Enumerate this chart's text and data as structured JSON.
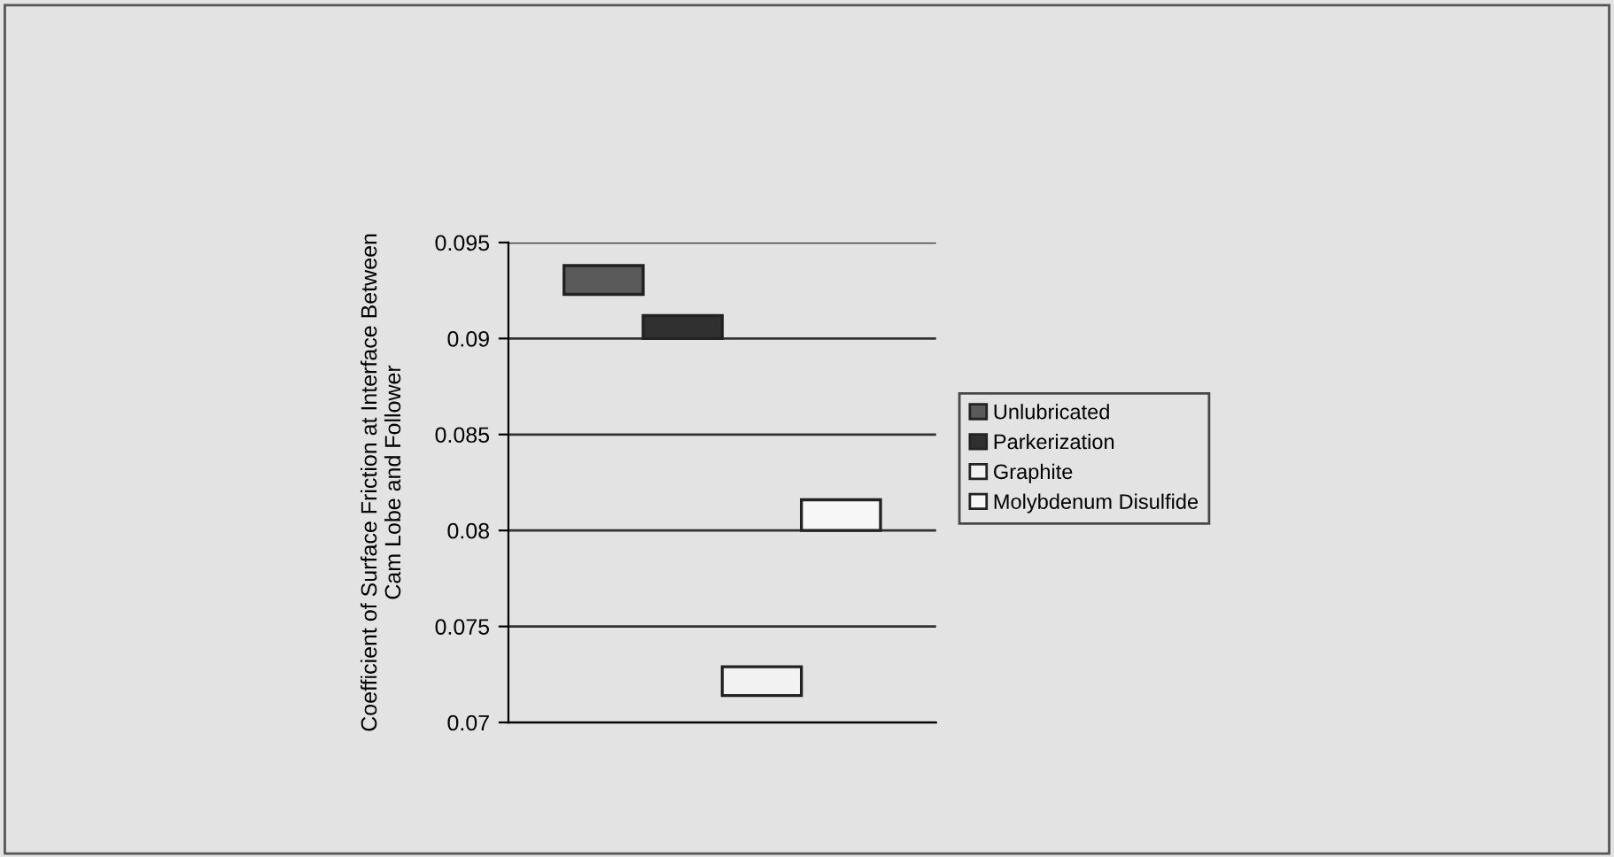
{
  "chart_data": {
    "type": "bar",
    "ylabel": "Coefficient of Surface Friction at Interface Between\nCam Lobe and Follower",
    "categories": [
      null
    ],
    "series": [
      {
        "name": "Unlubricated",
        "color": "#5a5a5a",
        "values": [
          0.0015
        ],
        "base": [
          0.0923
        ]
      },
      {
        "name": "Parkerization",
        "color": "#303030",
        "values": [
          0.0012
        ],
        "base": [
          0.09
        ]
      },
      {
        "name": "Graphite",
        "color": "#f2f2f2",
        "values": [
          0.0015
        ],
        "base": [
          0.0714
        ]
      },
      {
        "name": "Molybdenum Disulfide",
        "color": "#f7f7f7",
        "values": [
          0.0016
        ],
        "base": [
          0.08
        ]
      }
    ],
    "ylim": [
      0.07,
      0.095
    ],
    "yticks": [
      0.07,
      0.075,
      0.08,
      0.085,
      0.09,
      0.095
    ],
    "grid": "y",
    "legend": "right"
  }
}
